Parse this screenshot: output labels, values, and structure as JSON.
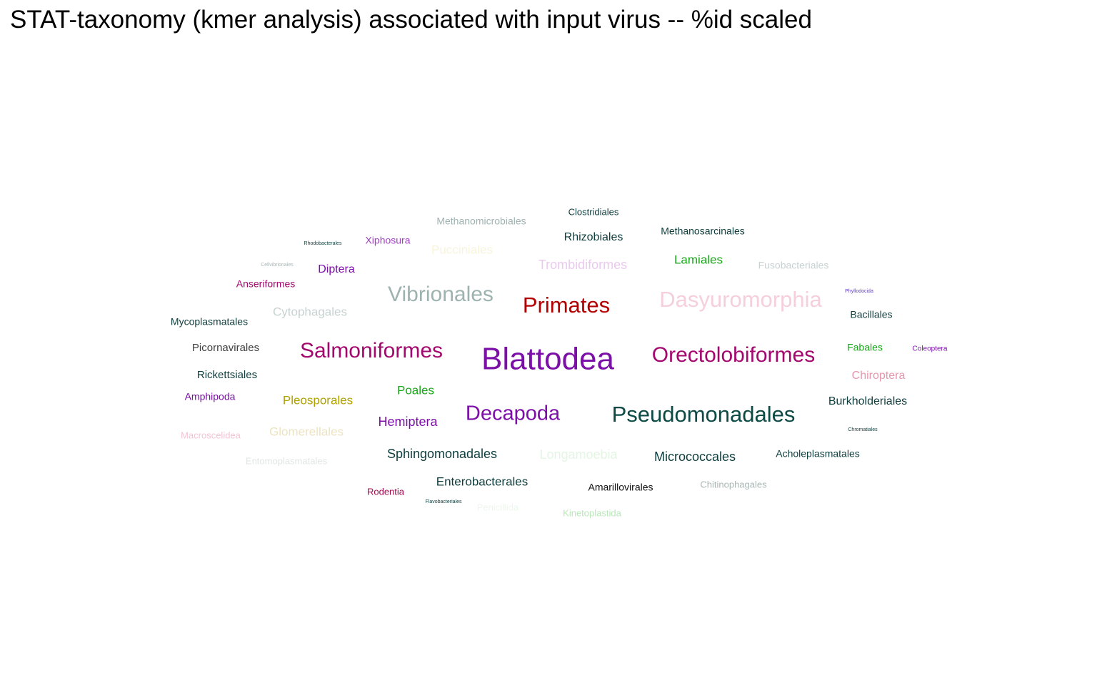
{
  "chart_data": {
    "type": "wordcloud",
    "title": "STAT-taxonomy (kmer analysis) associated with input virus -- %id scaled",
    "words": [
      {
        "text": "Blattodea",
        "color": "#7b0fa8"
      },
      {
        "text": "Pseudomonadales",
        "color": "#0e4a45"
      },
      {
        "text": "Orectolobiformes",
        "color": "#a3086f"
      },
      {
        "text": "Salmoniformes",
        "color": "#a3086f"
      },
      {
        "text": "Dasyuromorphia",
        "color": "#f5d0dc"
      },
      {
        "text": "Primates",
        "color": "#b30000"
      },
      {
        "text": "Vibrionales",
        "color": "#9eb3b0"
      },
      {
        "text": "Decapoda",
        "color": "#7b0fa8"
      },
      {
        "text": "Micrococcales",
        "color": "#0e3d3d"
      },
      {
        "text": "Sphingomonadales",
        "color": "#0e3d3d"
      },
      {
        "text": "Enterobacterales",
        "color": "#0e3d3d"
      },
      {
        "text": "Burkholderiales",
        "color": "#0e3d3d"
      },
      {
        "text": "Hemiptera",
        "color": "#7b0fa8"
      },
      {
        "text": "Pleosporales",
        "color": "#b0a000"
      },
      {
        "text": "Glomerellales",
        "color": "#ece3c1"
      },
      {
        "text": "Longamoebia",
        "color": "#e4f5e4"
      },
      {
        "text": "Cytophagales",
        "color": "#c7d3d1"
      },
      {
        "text": "Trombidiformes",
        "color": "#ebc9ef"
      },
      {
        "text": "Pucciniales",
        "color": "#f7f4dc"
      },
      {
        "text": "Rhizobiales",
        "color": "#0e3d3d"
      },
      {
        "text": "Lamiales",
        "color": "#1aa81a"
      },
      {
        "text": "Chiroptera",
        "color": "#e596ad"
      },
      {
        "text": "Poales",
        "color": "#1aa81a"
      },
      {
        "text": "Diptera",
        "color": "#7b0fa8"
      },
      {
        "text": "Picornavirales",
        "color": "#404040"
      },
      {
        "text": "Rickettsiales",
        "color": "#0e3d3d"
      },
      {
        "text": "Methanomicrobiales",
        "color": "#9eb3b0"
      },
      {
        "text": "Methanosarcinales",
        "color": "#0e3d3d"
      },
      {
        "text": "Fusobacteriales",
        "color": "#c7d3d1"
      },
      {
        "text": "Bacillales",
        "color": "#0e3d3d"
      },
      {
        "text": "Fabales",
        "color": "#1aa81a"
      },
      {
        "text": "Acholeplasmatales",
        "color": "#0e3d3d"
      },
      {
        "text": "Amarillovirales",
        "color": "#111111"
      },
      {
        "text": "Mycoplasmatales",
        "color": "#0e3d3d"
      },
      {
        "text": "Anseriformes",
        "color": "#a3086f"
      },
      {
        "text": "Xiphosura",
        "color": "#a043c0"
      },
      {
        "text": "Amphipoda",
        "color": "#7b0fa8"
      },
      {
        "text": "Macroscelidea",
        "color": "#f5c4d3"
      },
      {
        "text": "Entomoplasmatales",
        "color": "#e0e6e5"
      },
      {
        "text": "Chitinophagales",
        "color": "#a9b7b5"
      },
      {
        "text": "Kinetoplastida",
        "color": "#b9e7b9"
      },
      {
        "text": "Penicillida",
        "color": "#eef7ee"
      },
      {
        "text": "Rodentia",
        "color": "#a3084e"
      },
      {
        "text": "Clostridiales",
        "color": "#0e3d3d"
      },
      {
        "text": "Coleoptera",
        "color": "#7b0fa8"
      },
      {
        "text": "Rhodobacterales",
        "color": "#0e3d3d"
      },
      {
        "text": "Cellvibrionales",
        "color": "#a9b7b5"
      },
      {
        "text": "Phyllodocida",
        "color": "#6040c0"
      },
      {
        "text": "Chromatiales",
        "color": "#0e3d3d"
      },
      {
        "text": "Flavobacteriales",
        "color": "#0e3d3d"
      }
    ]
  }
}
